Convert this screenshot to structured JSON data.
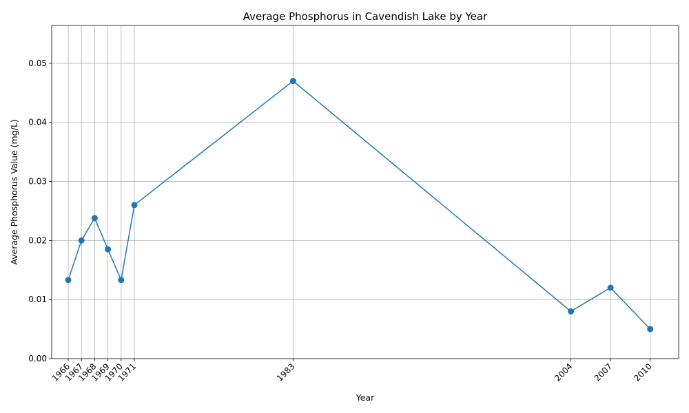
{
  "chart_data": {
    "type": "line",
    "title": "Average Phosphorus in Cavendish Lake by Year",
    "xlabel": "Year",
    "ylabel": "Average Phosphorus Value (mg/L)",
    "x": [
      1966,
      1967,
      1968,
      1969,
      1970,
      1971,
      1983,
      2004,
      2007,
      2010
    ],
    "x_tick_labels": [
      "1966",
      "1967",
      "1968",
      "1969",
      "1970",
      "1971",
      "1983",
      "2004",
      "2007",
      "2010"
    ],
    "y": [
      0.0133,
      0.02,
      0.0238,
      0.0185,
      0.0133,
      0.026,
      0.047,
      0.008,
      0.012,
      0.005
    ],
    "y_ticks": [
      0.0,
      0.01,
      0.02,
      0.03,
      0.04,
      0.05
    ],
    "y_tick_labels": [
      "0.00",
      "0.01",
      "0.02",
      "0.03",
      "0.04",
      "0.05"
    ],
    "xlim": [
      1964.75,
      2012.15
    ],
    "ylim": [
      0,
      0.0564
    ],
    "grid": true,
    "legend": "none",
    "series_color": "#1f77b4"
  }
}
